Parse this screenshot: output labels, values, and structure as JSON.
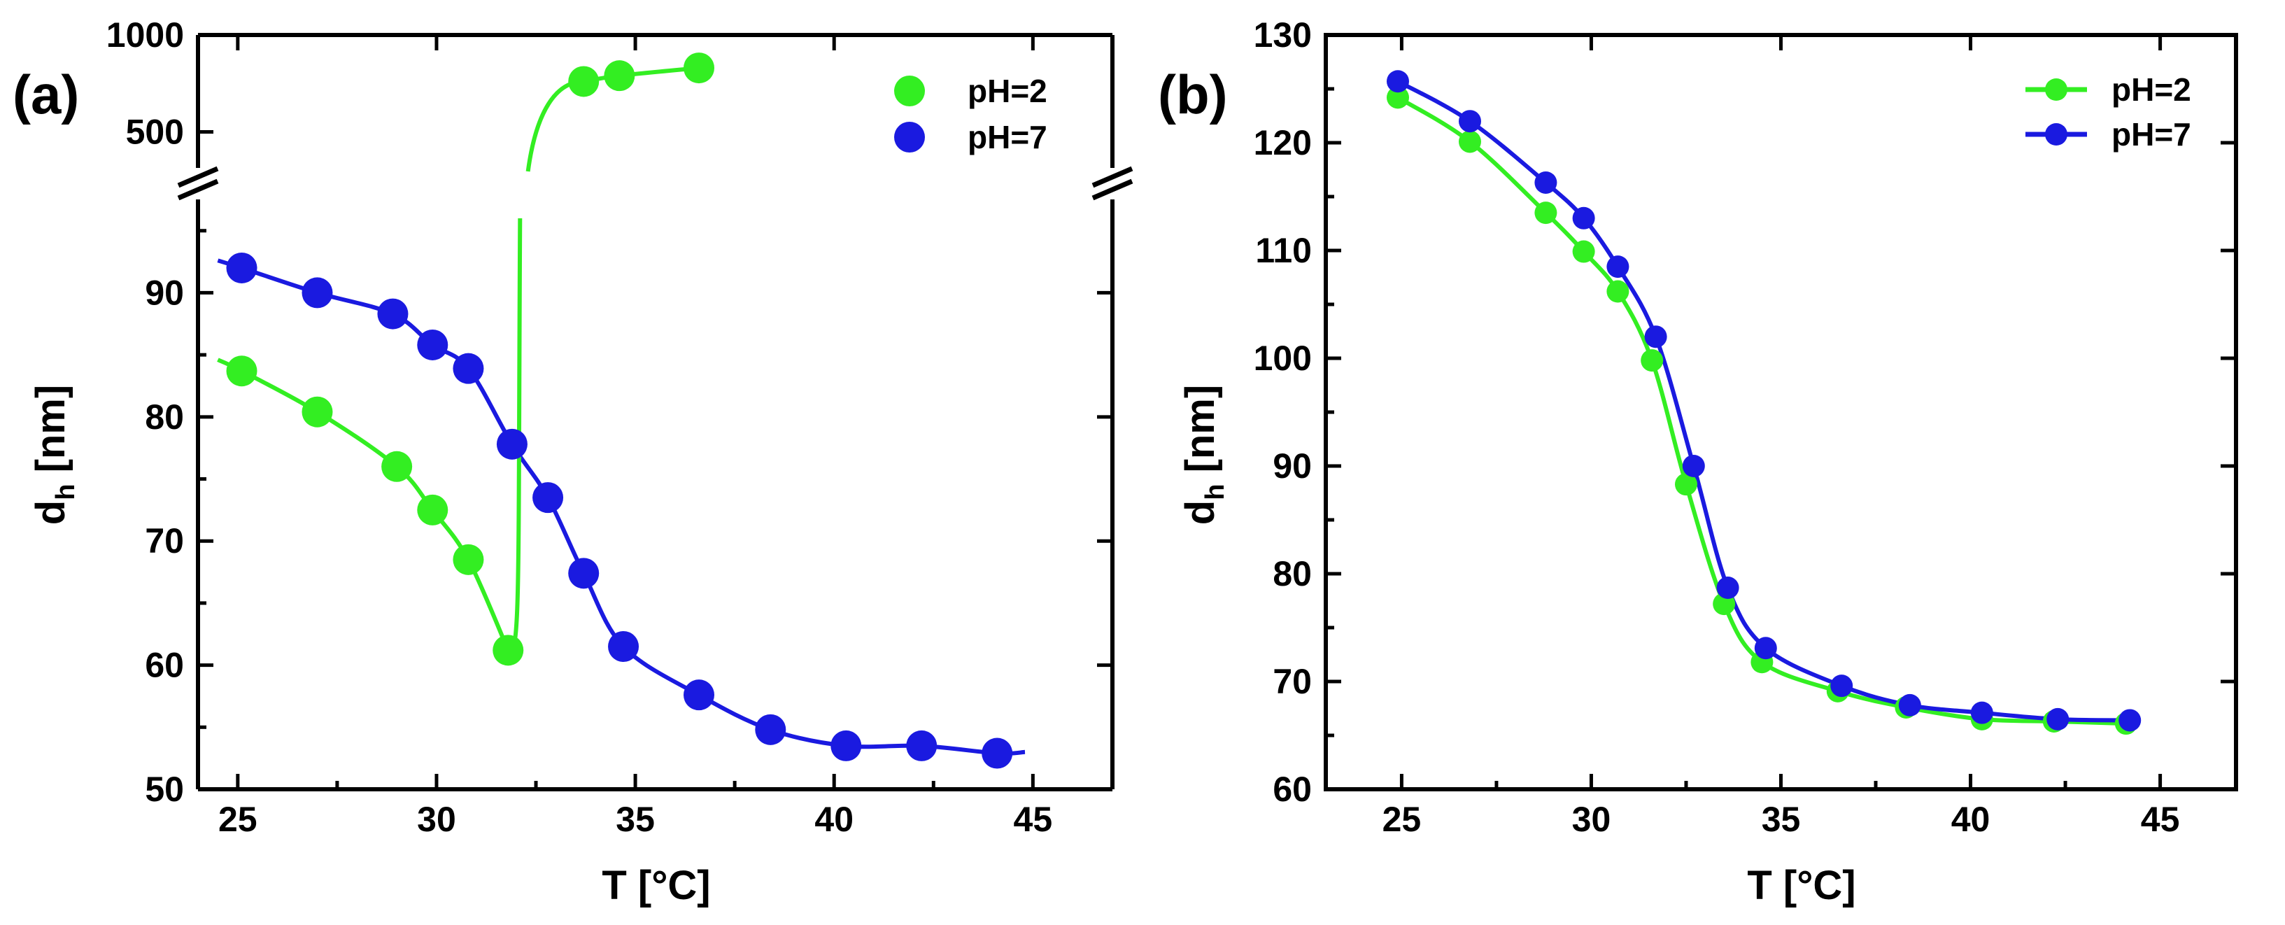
{
  "colors": {
    "green": "#33ee22",
    "blue": "#1a1ae0",
    "axis": "#000000"
  },
  "chart_data": [
    {
      "panel": "(a)",
      "type": "scatter",
      "title": "",
      "xlabel": "T [°C]",
      "ylabel_main": "d",
      "ylabel_sub": "h",
      "ylabel_unit": " [nm]",
      "xlim": [
        24,
        47
      ],
      "ylim_lower": [
        50,
        96
      ],
      "ylim_upper": [
        350,
        1000
      ],
      "axis_break": true,
      "xticks": [
        "25",
        "30",
        "35",
        "40",
        "45"
      ],
      "yticks_lower": [
        "50",
        "60",
        "70",
        "80",
        "90"
      ],
      "yticks_upper": [
        "500",
        "1000"
      ],
      "legend_placement": "top-right",
      "series": [
        {
          "name": "pH=2",
          "color": "green",
          "lines": false,
          "x": [
            25.1,
            27.0,
            29.0,
            29.9,
            30.8,
            31.8,
            33.7,
            34.6,
            36.6
          ],
          "y": [
            83.7,
            80.4,
            76.0,
            72.5,
            68.5,
            61.2,
            760,
            790,
            830
          ]
        },
        {
          "name": "pH=7",
          "color": "blue",
          "lines": false,
          "x": [
            25.1,
            27.0,
            28.9,
            29.9,
            30.8,
            31.9,
            32.8,
            33.7,
            34.7,
            36.6,
            38.4,
            40.3,
            42.2,
            44.1
          ],
          "y": [
            92.0,
            90.0,
            88.3,
            85.8,
            83.9,
            77.8,
            73.5,
            67.4,
            61.5,
            57.6,
            54.8,
            53.5,
            53.5,
            52.9
          ]
        }
      ]
    },
    {
      "panel": "(b)",
      "type": "line",
      "title": "",
      "xlabel": "T [°C]",
      "ylabel_main": "d",
      "ylabel_sub": "h",
      "ylabel_unit": " [nm]",
      "xlim": [
        23,
        47
      ],
      "ylim": [
        60,
        130
      ],
      "xticks": [
        "25",
        "30",
        "35",
        "40",
        "45"
      ],
      "yticks": [
        "60",
        "70",
        "80",
        "90",
        "100",
        "110",
        "120",
        "130"
      ],
      "legend_placement": "top-right",
      "series": [
        {
          "name": "pH=2",
          "color": "green",
          "lines": true,
          "x": [
            24.9,
            26.8,
            28.8,
            29.8,
            30.7,
            31.6,
            32.5,
            33.5,
            34.5,
            36.5,
            38.3,
            40.3,
            42.2,
            44.1
          ],
          "y": [
            124.2,
            120.1,
            113.5,
            109.9,
            106.2,
            99.8,
            88.3,
            77.2,
            71.8,
            69.1,
            67.6,
            66.5,
            66.3,
            66.1
          ]
        },
        {
          "name": "pH=7",
          "color": "blue",
          "lines": true,
          "x": [
            24.9,
            26.8,
            28.8,
            29.8,
            30.7,
            31.7,
            32.7,
            33.6,
            34.6,
            36.6,
            38.4,
            40.3,
            42.3,
            44.2
          ],
          "y": [
            125.7,
            122.0,
            116.3,
            113.0,
            108.5,
            102.0,
            90.0,
            78.7,
            73.1,
            69.6,
            67.8,
            67.1,
            66.5,
            66.4
          ]
        }
      ]
    }
  ]
}
